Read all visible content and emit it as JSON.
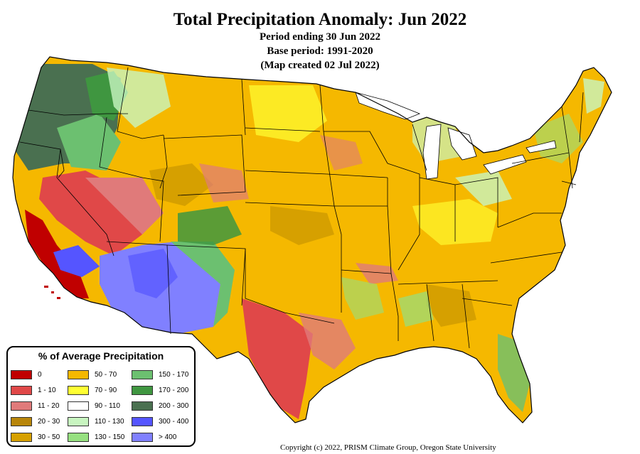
{
  "header": {
    "title": "Total Precipitation Anomaly: Jun 2022",
    "period": "Period ending 30 Jun 2022",
    "base_period": "Base period: 1991-2020",
    "created": "(Map created 02 Jul 2022)"
  },
  "legend": {
    "title": "% of Average Precipitation",
    "items": [
      {
        "label": "0",
        "color": "#c00000"
      },
      {
        "label": "1 - 10",
        "color": "#e04848"
      },
      {
        "label": "11 - 20",
        "color": "#e07a7a"
      },
      {
        "label": "20 - 30",
        "color": "#b8860b"
      },
      {
        "label": "30 - 50",
        "color": "#d6a000"
      },
      {
        "label": "50 - 70",
        "color": "#f5b800"
      },
      {
        "label": "70 - 90",
        "color": "#ffff33"
      },
      {
        "label": "90 - 110",
        "color": "#ffffff"
      },
      {
        "label": "110 - 130",
        "color": "#c8f5c0"
      },
      {
        "label": "130 - 150",
        "color": "#96e080"
      },
      {
        "label": "150 - 170",
        "color": "#6cc070"
      },
      {
        "label": "170 - 200",
        "color": "#3f9640"
      },
      {
        "label": "200 - 300",
        "color": "#4a7050"
      },
      {
        "label": "300 - 400",
        "color": "#5555ff"
      },
      {
        "label": "> 400",
        "color": "#8080ff"
      }
    ]
  },
  "footer": {
    "copyright": "Copyright (c) 2022, PRISM Climate Group, Oregon State University"
  }
}
